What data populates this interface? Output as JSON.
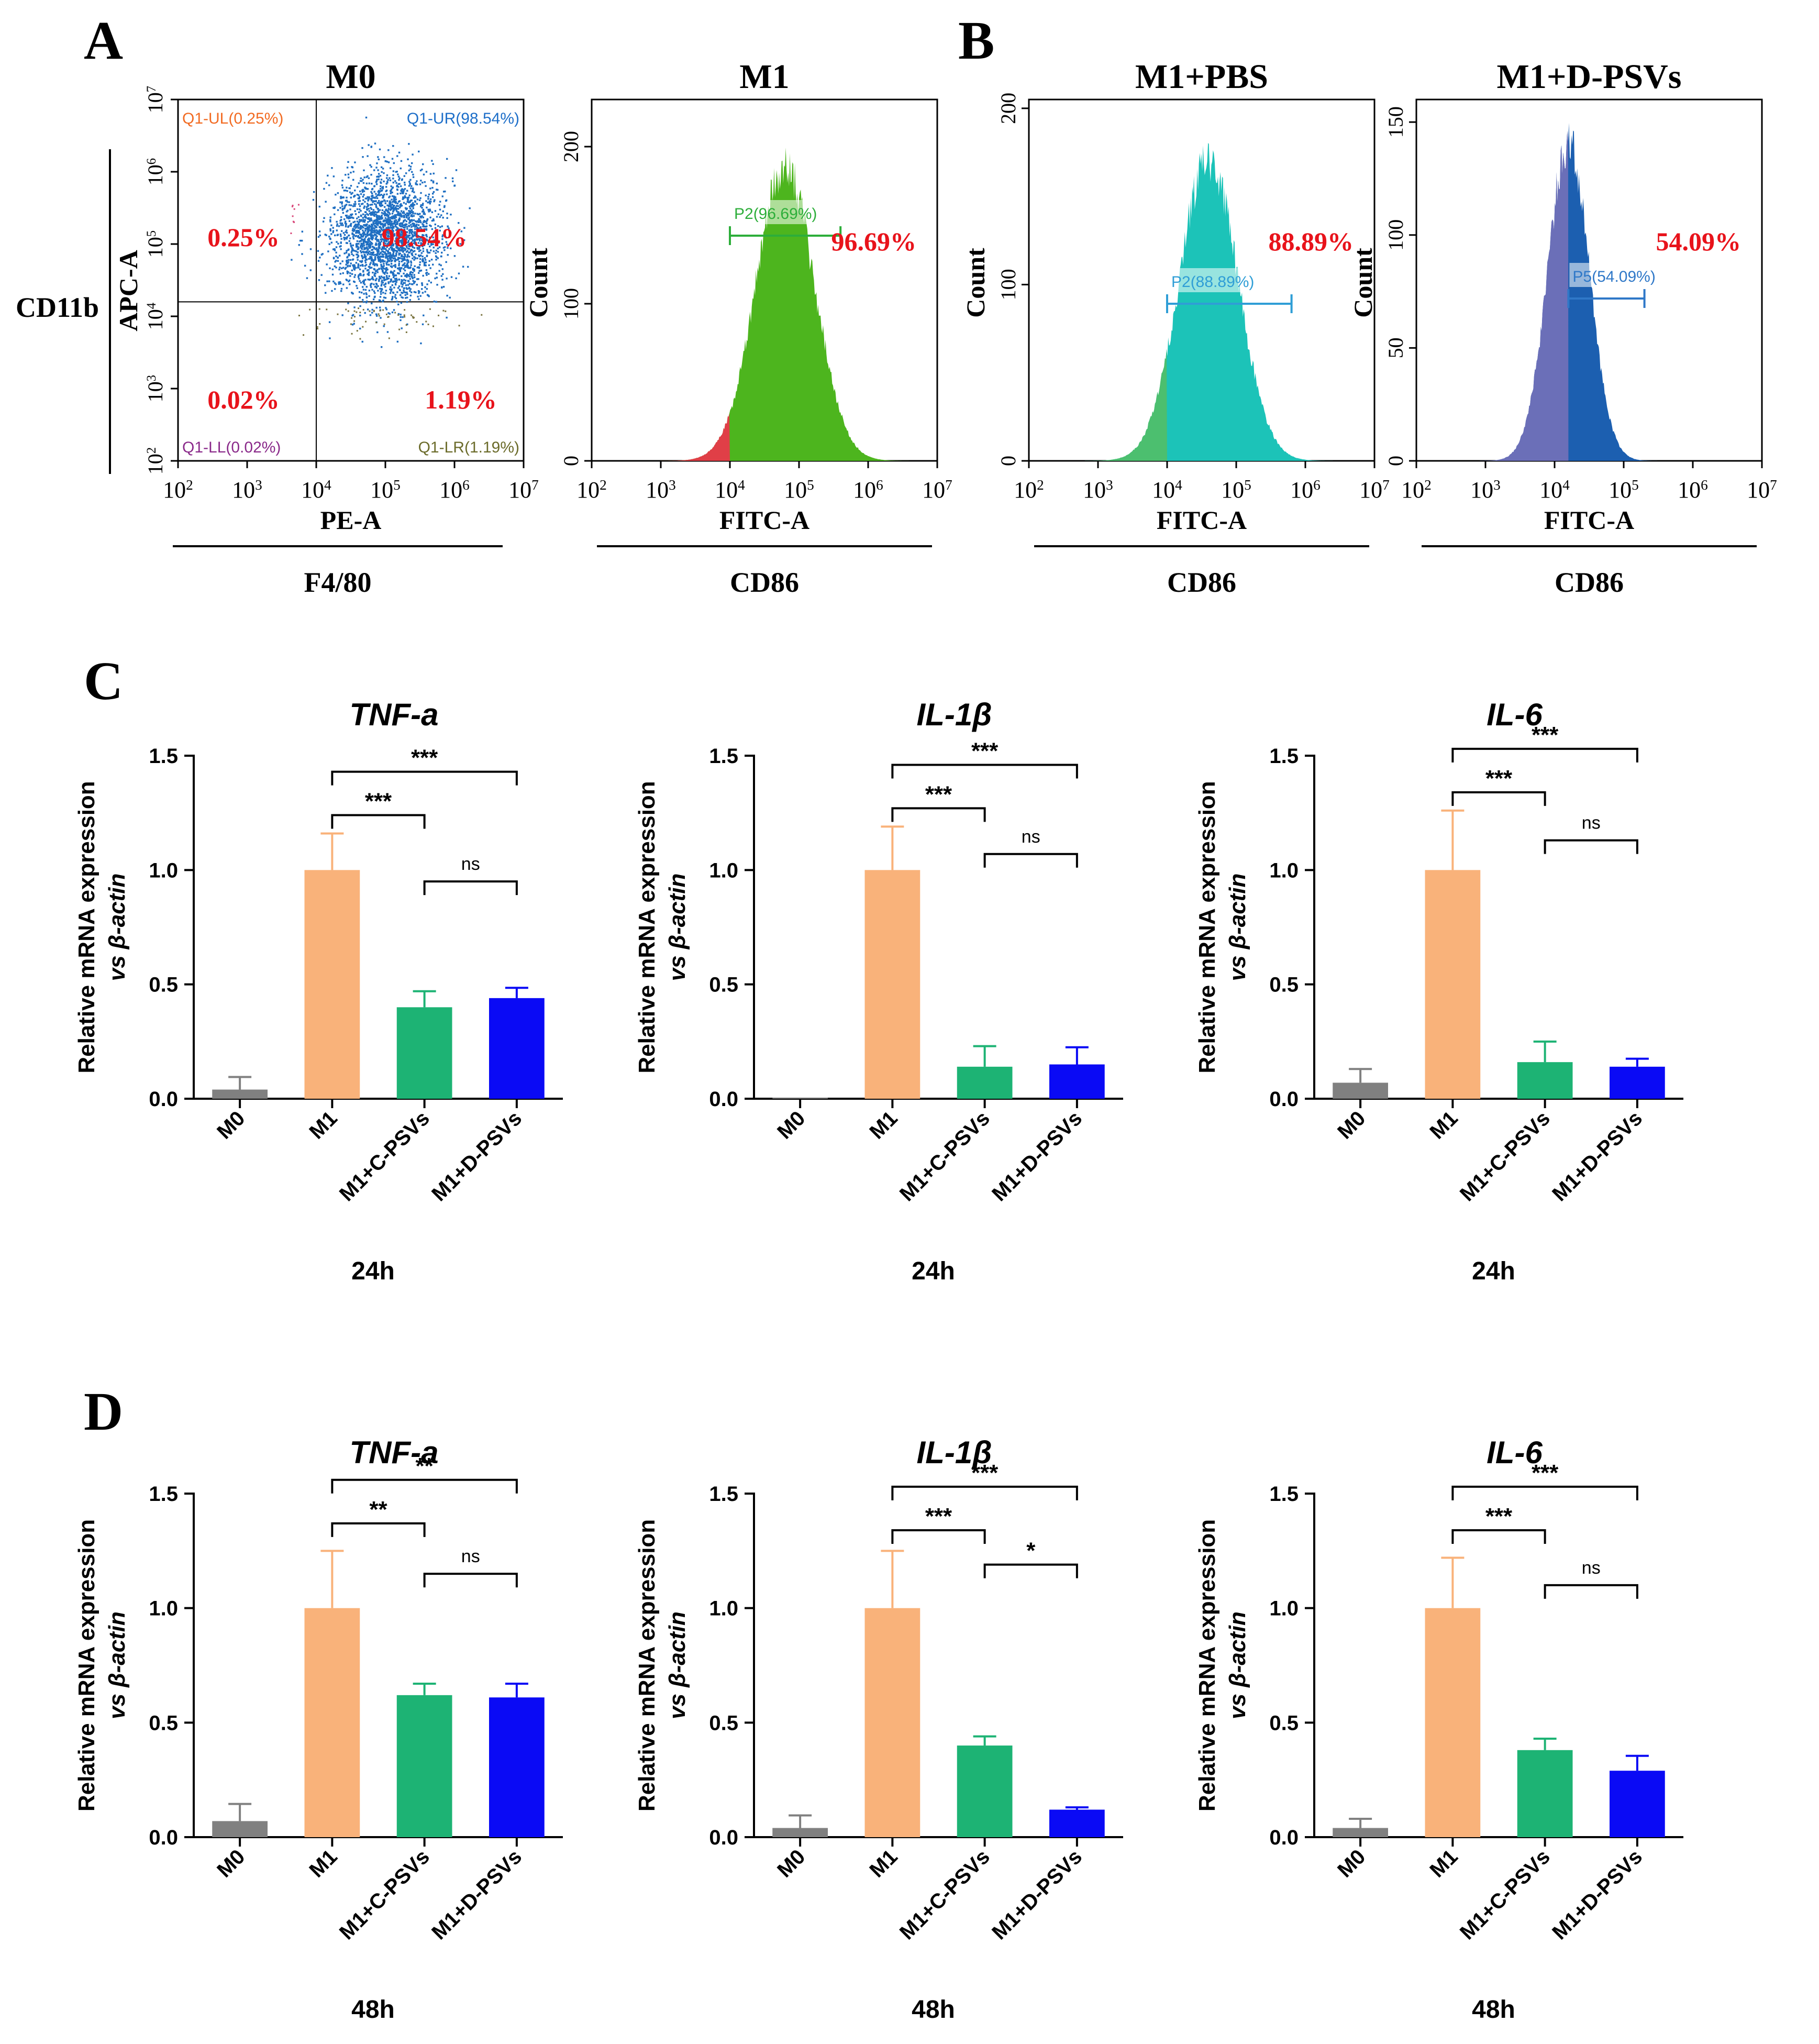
{
  "panel_letters": [
    "A",
    "B",
    "C",
    "D"
  ],
  "colors": {
    "m0": "#808080",
    "m1": "#F9B27A",
    "c_psvs": "#1DB374",
    "d_psvs": "#0A0AF5",
    "red_pct": "#E8131B",
    "scatter_blue": "#1F6FC2",
    "hist_green": "#4DB51E",
    "hist_cyan": "#1CC3B8",
    "hist_navy": "#1C5FB0",
    "gate_ul": "#F26B22",
    "gate_ur": "#1E6FC9",
    "gate_ll": "#8A2A8A",
    "gate_lr": "#6B6B2A"
  },
  "chart_data": [
    {
      "type": "scatter",
      "title": "M0",
      "xlabel": "PE-A",
      "xlabel_group": "F4/80",
      "ylabel": "APC-A",
      "ylabel_group": "CD11b",
      "axis_scale": "log10",
      "xlim_exponents": [
        2,
        7
      ],
      "ylim_exponents": [
        2,
        7
      ],
      "quadrant_gate_exponents": {
        "x": 4,
        "y": 4.2
      },
      "quadrants": [
        {
          "position": "upper-left",
          "name": "Q1-UL(0.25%)",
          "pct": "0.25%"
        },
        {
          "position": "upper-right",
          "name": "Q1-UR(98.54%)",
          "pct": "98.54%"
        },
        {
          "position": "lower-left",
          "name": "Q1-LL(0.02%)",
          "pct": "0.02%"
        },
        {
          "position": "lower-right",
          "name": "Q1-LR(1.19%)",
          "pct": "1.19%"
        }
      ],
      "population_center_exponents": {
        "x": 5.0,
        "y": 5.1
      }
    },
    {
      "type": "area",
      "title": "M1",
      "xlabel": "FITC-A",
      "xlabel_group": "CD86",
      "ylabel": "Count",
      "axis_scale_x": "log10",
      "xlim_exponents": [
        2,
        7
      ],
      "ylim": [
        0,
        230
      ],
      "yticks": [
        0,
        100,
        200
      ],
      "gate": {
        "name": "P2(96.69%)",
        "pct": "96.69%",
        "start_exponent": 4.0,
        "end_exponent": 5.6
      },
      "peak": {
        "x_exponent": 4.8,
        "count": 188,
        "width": 0.42
      },
      "fill": "hist_green",
      "gate_color": "#2DAE3A"
    },
    {
      "type": "area",
      "title": "M1+PBS",
      "xlabel": "FITC-A",
      "xlabel_group": "CD86",
      "ylabel": "Count",
      "axis_scale_x": "log10",
      "xlim_exponents": [
        2,
        7
      ],
      "ylim": [
        0,
        205
      ],
      "yticks": [
        0,
        100,
        200
      ],
      "gate": {
        "name": "P2(88.89%)",
        "pct": "88.89%",
        "start_exponent": 4.0,
        "end_exponent": 5.8
      },
      "peak": {
        "x_exponent": 4.6,
        "count": 172,
        "width": 0.42
      },
      "fill": "hist_cyan",
      "gate_color": "#2F9ED6"
    },
    {
      "type": "area",
      "title": "M1+D-PSVs",
      "xlabel": "FITC-A",
      "xlabel_group": "CD86",
      "ylabel": "Count",
      "axis_scale_x": "log10",
      "xlim_exponents": [
        2,
        7
      ],
      "ylim": [
        0,
        160
      ],
      "yticks": [
        0,
        50,
        100,
        150
      ],
      "gate": {
        "name": "P5(54.09%)",
        "pct": "54.09%",
        "start_exponent": 4.2,
        "end_exponent": 5.3
      },
      "peak": {
        "x_exponent": 4.2,
        "count": 140,
        "width": 0.3
      },
      "fill": "hist_navy",
      "gate_color": "#2F78C8"
    },
    {
      "type": "bar",
      "panel": "C",
      "title": "TNF-a",
      "ylabel": "Relative mRNA expression",
      "ylabel2": "vs β-actin",
      "timepoint": "24h",
      "categories": [
        "M0",
        "M1",
        "M1+C-PSVs",
        "M1+D-PSVs"
      ],
      "values": [
        0.04,
        1.0,
        0.4,
        0.44
      ],
      "errors": [
        0.055,
        0.16,
        0.07,
        0.045
      ],
      "ylim": [
        0,
        1.5
      ],
      "yticks": [
        "0.0",
        "0.5",
        "1.0",
        "1.5"
      ],
      "significance": [
        {
          "from": 1,
          "to": 2,
          "y": 1.24,
          "label": "***"
        },
        {
          "from": 1,
          "to": 3,
          "y": 1.43,
          "label": "***"
        },
        {
          "from": 2,
          "to": 3,
          "y": 0.95,
          "label": "ns"
        }
      ]
    },
    {
      "type": "bar",
      "panel": "C",
      "title": "IL-1β",
      "ylabel": "Relative mRNA expression",
      "ylabel2": "vs β-actin",
      "timepoint": "24h",
      "categories": [
        "M0",
        "M1",
        "M1+C-PSVs",
        "M1+D-PSVs"
      ],
      "values": [
        0.004,
        1.0,
        0.14,
        0.15
      ],
      "errors": [
        0.0,
        0.19,
        0.09,
        0.075
      ],
      "ylim": [
        0,
        1.5
      ],
      "yticks": [
        "0.0",
        "0.5",
        "1.0",
        "1.5"
      ],
      "significance": [
        {
          "from": 1,
          "to": 2,
          "y": 1.27,
          "label": "***"
        },
        {
          "from": 1,
          "to": 3,
          "y": 1.46,
          "label": "***"
        },
        {
          "from": 2,
          "to": 3,
          "y": 1.07,
          "label": "ns"
        }
      ]
    },
    {
      "type": "bar",
      "panel": "C",
      "title": "IL-6",
      "ylabel": "Relative mRNA expression",
      "ylabel2": "vs β-actin",
      "timepoint": "24h",
      "categories": [
        "M0",
        "M1",
        "M1+C-PSVs",
        "M1+D-PSVs"
      ],
      "values": [
        0.07,
        1.0,
        0.16,
        0.14
      ],
      "errors": [
        0.06,
        0.26,
        0.09,
        0.035
      ],
      "ylim": [
        0,
        1.5
      ],
      "yticks": [
        "0.0",
        "0.5",
        "1.0",
        "1.5"
      ],
      "significance": [
        {
          "from": 1,
          "to": 2,
          "y": 1.34,
          "label": "***"
        },
        {
          "from": 1,
          "to": 3,
          "y": 1.53,
          "label": "***"
        },
        {
          "from": 2,
          "to": 3,
          "y": 1.13,
          "label": "ns"
        }
      ]
    },
    {
      "type": "bar",
      "panel": "D",
      "title": "TNF-a",
      "ylabel": "Relative mRNA expression",
      "ylabel2": "vs β-actin",
      "timepoint": "48h",
      "categories": [
        "M0",
        "M1",
        "M1+C-PSVs",
        "M1+D-PSVs"
      ],
      "values": [
        0.07,
        1.0,
        0.62,
        0.61
      ],
      "errors": [
        0.075,
        0.25,
        0.05,
        0.06
      ],
      "ylim": [
        0,
        1.5
      ],
      "yticks": [
        "0.0",
        "0.5",
        "1.0",
        "1.5"
      ],
      "significance": [
        {
          "from": 1,
          "to": 2,
          "y": 1.37,
          "label": "**"
        },
        {
          "from": 1,
          "to": 3,
          "y": 1.56,
          "label": "**"
        },
        {
          "from": 2,
          "to": 3,
          "y": 1.15,
          "label": "ns"
        }
      ]
    },
    {
      "type": "bar",
      "panel": "D",
      "title": "IL-1β",
      "ylabel": "Relative mRNA expression",
      "ylabel2": "vs β-actin",
      "timepoint": "48h",
      "categories": [
        "M0",
        "M1",
        "M1+C-PSVs",
        "M1+D-PSVs"
      ],
      "values": [
        0.04,
        1.0,
        0.4,
        0.12
      ],
      "errors": [
        0.055,
        0.25,
        0.04,
        0.01
      ],
      "ylim": [
        0,
        1.5
      ],
      "yticks": [
        "0.0",
        "0.5",
        "1.0",
        "1.5"
      ],
      "significance": [
        {
          "from": 1,
          "to": 2,
          "y": 1.34,
          "label": "***"
        },
        {
          "from": 1,
          "to": 3,
          "y": 1.53,
          "label": "***"
        },
        {
          "from": 2,
          "to": 3,
          "y": 1.19,
          "label": "*"
        }
      ]
    },
    {
      "type": "bar",
      "panel": "D",
      "title": "IL-6",
      "ylabel": "Relative mRNA expression",
      "ylabel2": "vs β-actin",
      "timepoint": "48h",
      "categories": [
        "M0",
        "M1",
        "M1+C-PSVs",
        "M1+D-PSVs"
      ],
      "values": [
        0.04,
        1.0,
        0.38,
        0.29
      ],
      "errors": [
        0.04,
        0.22,
        0.05,
        0.065
      ],
      "ylim": [
        0,
        1.5
      ],
      "yticks": [
        "0.0",
        "0.5",
        "1.0",
        "1.5"
      ],
      "significance": [
        {
          "from": 1,
          "to": 2,
          "y": 1.34,
          "label": "***"
        },
        {
          "from": 1,
          "to": 3,
          "y": 1.53,
          "label": "***"
        },
        {
          "from": 2,
          "to": 3,
          "y": 1.1,
          "label": "ns"
        }
      ]
    }
  ]
}
